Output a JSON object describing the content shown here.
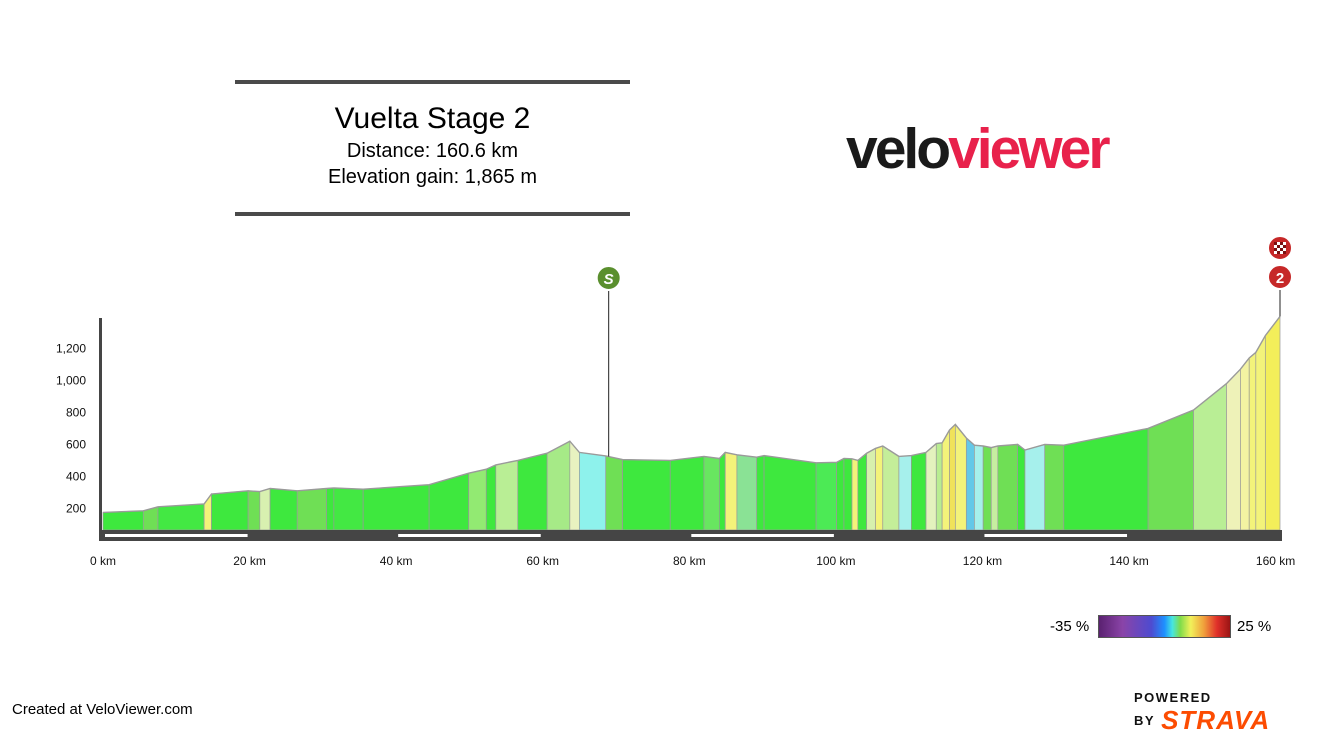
{
  "header": {
    "title": "Vuelta Stage 2",
    "distance_line": "Distance: 160.6 km",
    "elevation_line": "Elevation gain: 1,865 m"
  },
  "logo": {
    "part1": "velo",
    "part2": "viewer"
  },
  "markers": {
    "sprint": {
      "label": "S",
      "km": 69,
      "color": "#5a8f2e"
    },
    "finish": {
      "label": "2",
      "km": 160.6,
      "color": "#c62828"
    }
  },
  "legend": {
    "min_label": "-35 %",
    "max_label": "25 %"
  },
  "footer": {
    "created": "Created at VeloViewer.com",
    "powered_by": "POWERED BY",
    "brand": "STRAVA"
  },
  "chart_data": {
    "type": "area",
    "title": "Vuelta Stage 2",
    "x_unit": "km",
    "y_unit": "m",
    "xlim": [
      0,
      160.6
    ],
    "ylim": [
      60,
      1400
    ],
    "x_ticks": [
      0,
      20,
      40,
      60,
      80,
      100,
      120,
      140,
      160
    ],
    "x_tick_labels": [
      "0 km",
      "20 km",
      "40 km",
      "60 km",
      "80 km",
      "100 km",
      "120 km",
      "140 km",
      "160 km"
    ],
    "y_ticks": [
      200,
      400,
      600,
      800,
      1000,
      1200
    ],
    "y_tick_labels": [
      "200",
      "400",
      "600",
      "800",
      "1,000",
      "1,200"
    ],
    "profile": [
      [
        0,
        175
      ],
      [
        5.5,
        185
      ],
      [
        7.5,
        210
      ],
      [
        13.8,
        228
      ],
      [
        14.8,
        290
      ],
      [
        19.8,
        310
      ],
      [
        21.4,
        305
      ],
      [
        22.8,
        325
      ],
      [
        26.5,
        310
      ],
      [
        30.5,
        325
      ],
      [
        31.5,
        328
      ],
      [
        35.5,
        320
      ],
      [
        44.5,
        348
      ],
      [
        49.9,
        420
      ],
      [
        52.3,
        445
      ],
      [
        53.6,
        472
      ],
      [
        56.6,
        500
      ],
      [
        60.6,
        545
      ],
      [
        63.7,
        620
      ],
      [
        65.0,
        550
      ],
      [
        68.6,
        528
      ],
      [
        70.9,
        505
      ],
      [
        77.4,
        500
      ],
      [
        82.0,
        525
      ],
      [
        84.1,
        512
      ],
      [
        84.9,
        550
      ],
      [
        86.5,
        535
      ],
      [
        89.2,
        520
      ],
      [
        90.2,
        530
      ],
      [
        97.3,
        485
      ],
      [
        100.1,
        488
      ],
      [
        101.1,
        512
      ],
      [
        102.2,
        510
      ],
      [
        103.0,
        500
      ],
      [
        104.2,
        545
      ],
      [
        105.4,
        575
      ],
      [
        106.4,
        590
      ],
      [
        108.6,
        525
      ],
      [
        110.3,
        530
      ],
      [
        112.3,
        550
      ],
      [
        113.7,
        605
      ],
      [
        114.5,
        610
      ],
      [
        115.5,
        690
      ],
      [
        116.3,
        725
      ],
      [
        117.8,
        640
      ],
      [
        118.9,
        595
      ],
      [
        120.1,
        590
      ],
      [
        121.2,
        580
      ],
      [
        122.1,
        590
      ],
      [
        124.8,
        600
      ],
      [
        125.8,
        565
      ],
      [
        128.5,
        600
      ],
      [
        131.1,
        595
      ],
      [
        142.6,
        700
      ],
      [
        148.8,
        815
      ],
      [
        153.3,
        980
      ],
      [
        155.2,
        1070
      ],
      [
        156.4,
        1140
      ],
      [
        157.3,
        1175
      ],
      [
        158.6,
        1280
      ],
      [
        160.6,
        1400
      ]
    ],
    "segment_colors": [
      "#3ee83e",
      "#6fdf55",
      "#43e843",
      "#f3f37a",
      "#3ee83e",
      "#6fdf55",
      "#d8f0b0",
      "#3ee83e",
      "#6fdf55",
      "#3ee83e",
      "#43e843",
      "#3ee83e",
      "#3ee83e",
      "#92ea72",
      "#3ee83e",
      "#b9ee95",
      "#3ee83e",
      "#a6ea87",
      "#e8f2c0",
      "#8ef2ec",
      "#6fdf55",
      "#3ee83e",
      "#3ee83e",
      "#68e660",
      "#3ee83e",
      "#f3f37a",
      "#8ae295",
      "#3ee83e",
      "#3ee83e",
      "#4cea55",
      "#3ee83e",
      "#3ee83e",
      "#f3f37a",
      "#3ee83e",
      "#d7f0ad",
      "#f3f37a",
      "#c4ee99",
      "#a6f0ec",
      "#3ee83e",
      "#e3f2bd",
      "#b8ed91",
      "#f3f37a",
      "#f0e25a",
      "#f3f37a",
      "#64c8e8",
      "#a6f0ec",
      "#6fdf55",
      "#c6eea0",
      "#6fdf55",
      "#3ee83e",
      "#a6f0ec",
      "#6fdf55",
      "#3ee83e",
      "#6fdf55",
      "#b9ee95",
      "#eef2b8",
      "#f3f3a2",
      "#f3f37a",
      "#f3f37a",
      "#f3ee5a"
    ]
  }
}
